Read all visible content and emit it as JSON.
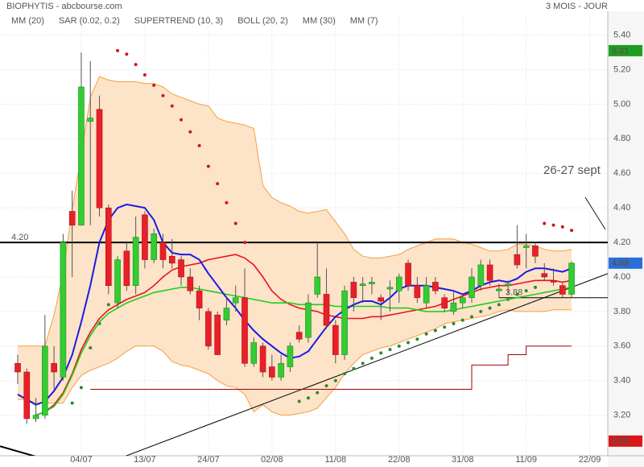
{
  "chart_data": {
    "type": "candlestick",
    "title": "BIOPHYTIS - abcbourse.com",
    "subtitle": "3 MOIS - JOUR",
    "categories": [
      null,
      null,
      null,
      null,
      null,
      null,
      null,
      "04/07",
      null,
      null,
      null,
      null,
      null,
      null,
      "13/07",
      null,
      null,
      null,
      null,
      null,
      null,
      "24/07",
      null,
      null,
      null,
      null,
      null,
      null,
      "02/08",
      null,
      null,
      null,
      null,
      null,
      null,
      "11/08",
      null,
      null,
      null,
      null,
      null,
      null,
      "22/08",
      null,
      null,
      null,
      null,
      null,
      null,
      "31/08",
      null,
      null,
      null,
      null,
      null,
      null,
      "11/09",
      null,
      null,
      null,
      null,
      null,
      null,
      "22/09"
    ],
    "open": [
      3.5,
      3.45,
      3.18,
      3.2,
      3.5,
      3.42,
      4.38,
      4.3,
      4.9,
      4.97,
      4.4,
      3.85,
      4.15,
      3.95,
      4.36,
      4.1,
      4.2,
      4.12,
      4.1,
      4.0,
      3.92,
      3.8,
      3.78,
      3.75,
      3.85,
      3.88,
      3.5,
      3.6,
      3.48,
      3.42,
      3.48,
      3.68,
      3.65,
      3.9,
      3.9,
      3.72,
      3.55,
      3.97,
      3.95,
      3.96,
      3.88,
      3.93,
      3.92,
      4.08,
      3.95,
      3.85,
      3.97,
      3.88,
      3.8,
      3.85,
      3.88,
      3.95,
      4.07,
      3.92,
      3.95,
      4.13,
      4.17,
      4.18,
      4.02,
      3.98,
      3.95,
      3.9,
      null,
      null
    ],
    "close": [
      3.45,
      3.18,
      3.2,
      3.6,
      3.45,
      4.2,
      4.3,
      5.1,
      4.92,
      4.4,
      3.95,
      4.1,
      3.95,
      4.23,
      4.1,
      4.25,
      4.1,
      4.08,
      4.0,
      3.92,
      3.82,
      3.6,
      3.55,
      3.82,
      3.88,
      3.5,
      3.62,
      3.45,
      3.42,
      3.5,
      3.6,
      3.64,
      3.85,
      4.0,
      3.72,
      3.55,
      3.92,
      3.88,
      3.96,
      3.97,
      3.86,
      3.94,
      4.0,
      3.95,
      3.88,
      3.95,
      3.92,
      3.82,
      3.85,
      3.88,
      4.0,
      4.07,
      3.98,
      3.93,
      3.96,
      4.07,
      4.18,
      4.12,
      4.0,
      3.97,
      3.9,
      4.08,
      null,
      null
    ],
    "high": [
      3.55,
      3.47,
      3.3,
      3.78,
      3.6,
      4.25,
      4.5,
      5.3,
      5.25,
      5.05,
      4.42,
      4.12,
      4.2,
      4.35,
      4.38,
      4.28,
      4.25,
      4.22,
      4.12,
      4.05,
      3.95,
      3.82,
      3.8,
      3.88,
      3.95,
      4.05,
      3.65,
      3.62,
      3.55,
      3.55,
      3.62,
      3.72,
      3.9,
      4.2,
      4.05,
      3.75,
      3.95,
      4.0,
      4.0,
      4.0,
      3.9,
      3.98,
      4.02,
      4.1,
      4.0,
      4.0,
      4.0,
      3.9,
      3.92,
      3.9,
      4.05,
      4.1,
      4.1,
      3.96,
      3.98,
      4.3,
      4.25,
      4.2,
      4.08,
      4.05,
      3.97,
      4.09,
      null,
      null
    ],
    "low": [
      3.38,
      3.15,
      3.16,
      3.18,
      3.35,
      3.4,
      4.0,
      4.3,
      4.3,
      4.35,
      3.9,
      3.82,
      3.92,
      3.9,
      4.05,
      4.08,
      4.05,
      4.05,
      3.95,
      3.9,
      3.75,
      3.58,
      3.55,
      3.72,
      3.8,
      3.48,
      3.48,
      3.42,
      3.4,
      3.4,
      3.45,
      3.62,
      3.62,
      3.88,
      3.7,
      3.5,
      3.52,
      3.8,
      3.85,
      3.9,
      3.75,
      3.8,
      3.85,
      3.92,
      3.85,
      3.82,
      3.9,
      3.8,
      3.78,
      3.82,
      3.85,
      3.92,
      3.95,
      3.88,
      3.9,
      4.05,
      4.05,
      4.08,
      3.98,
      3.95,
      3.88,
      3.88,
      null,
      null
    ],
    "up_color": "#33cc33",
    "down_color": "#e8202a",
    "series": [
      {
        "name": "MM (20)",
        "kind": "line",
        "color": "#e8141c",
        "values": [
          null,
          null,
          3.2,
          3.22,
          3.26,
          3.33,
          3.44,
          3.58,
          3.68,
          3.76,
          3.81,
          3.84,
          3.87,
          3.89,
          3.91,
          3.95,
          4.0,
          4.04,
          4.06,
          4.07,
          4.08,
          4.1,
          4.11,
          4.12,
          4.13,
          4.11,
          4.07,
          4.0,
          3.92,
          3.87,
          3.84,
          3.82,
          3.81,
          3.8,
          3.78,
          3.77,
          3.76,
          3.76,
          3.76,
          3.77,
          3.77,
          3.78,
          3.79,
          3.8,
          3.81,
          3.82,
          3.83,
          3.85,
          3.87,
          3.89,
          3.91,
          3.93,
          3.94,
          3.95,
          3.95,
          3.96,
          3.97,
          3.98,
          3.98,
          3.98,
          3.97,
          3.98,
          null,
          null
        ]
      },
      {
        "name": "SAR (0.02, 0.2)",
        "kind": "dots",
        "color": "#cc1a1a",
        "up_color": "#2a8a2a",
        "values": [
          null,
          null,
          null,
          null,
          null,
          null,
          3.27,
          3.36,
          3.59,
          3.73,
          3.84,
          5.31,
          5.29,
          5.23,
          5.17,
          5.11,
          5.05,
          4.99,
          4.91,
          4.84,
          4.76,
          4.64,
          4.54,
          4.43,
          4.31,
          4.2,
          null,
          null,
          null,
          null,
          null,
          3.28,
          3.3,
          3.33,
          3.37,
          3.4,
          3.44,
          3.47,
          3.5,
          3.53,
          3.56,
          3.58,
          3.6,
          3.62,
          3.64,
          3.67,
          3.69,
          3.71,
          3.73,
          3.75,
          3.77,
          3.8,
          3.82,
          3.84,
          3.87,
          3.9,
          3.92,
          3.94,
          4.31,
          4.3,
          4.29,
          4.27,
          null,
          null
        ]
      },
      {
        "name": "SUPERTREND (10, 3)",
        "kind": "step",
        "color": "#1e9e1e",
        "line_color": "#a00000",
        "values": [
          null,
          null,
          null,
          null,
          null,
          null,
          null,
          null,
          3.35,
          3.35,
          3.35,
          3.35,
          3.35,
          3.35,
          3.35,
          3.35,
          3.35,
          3.35,
          3.35,
          3.35,
          3.35,
          3.35,
          3.35,
          3.35,
          3.35,
          3.35,
          3.35,
          3.35,
          3.35,
          3.35,
          3.35,
          3.35,
          3.35,
          3.35,
          3.35,
          3.35,
          3.35,
          3.35,
          3.35,
          3.35,
          3.35,
          3.35,
          3.35,
          3.35,
          3.35,
          3.35,
          3.35,
          3.35,
          3.35,
          3.35,
          3.49,
          3.49,
          3.49,
          3.49,
          3.55,
          3.55,
          3.6,
          3.6,
          3.6,
          3.6,
          3.6,
          3.6,
          null,
          null
        ]
      },
      {
        "name": "BOLL (20, 2)",
        "kind": "band",
        "color": "#f4a040",
        "fill": "#fde3c8",
        "upper": [
          3.6,
          3.6,
          3.6,
          3.6,
          3.78,
          4.02,
          4.39,
          4.71,
          5.04,
          5.16,
          5.14,
          5.13,
          5.13,
          5.13,
          5.12,
          5.12,
          5.1,
          5.06,
          5.04,
          5.02,
          5.0,
          4.99,
          4.92,
          4.9,
          4.89,
          4.88,
          4.86,
          4.53,
          4.46,
          4.43,
          4.41,
          4.38,
          4.37,
          4.38,
          4.39,
          4.32,
          4.25,
          4.16,
          4.12,
          4.11,
          4.11,
          4.12,
          4.13,
          4.16,
          4.18,
          4.2,
          4.22,
          4.22,
          4.22,
          4.2,
          4.19,
          4.17,
          4.15,
          4.15,
          4.16,
          4.19,
          4.19,
          4.18,
          4.16,
          4.15,
          4.15,
          4.16,
          null,
          null
        ],
        "lower": [
          3.29,
          3.29,
          3.27,
          3.27,
          3.27,
          3.27,
          3.36,
          3.43,
          3.46,
          3.48,
          3.5,
          3.53,
          3.57,
          3.6,
          3.6,
          3.6,
          3.57,
          3.51,
          3.49,
          3.48,
          3.46,
          3.44,
          3.4,
          3.37,
          3.36,
          3.32,
          3.22,
          3.26,
          3.22,
          3.2,
          3.2,
          3.21,
          3.22,
          3.24,
          3.3,
          3.36,
          3.44,
          3.5,
          3.55,
          3.57,
          3.59,
          3.6,
          3.62,
          3.64,
          3.66,
          3.68,
          3.7,
          3.73,
          3.74,
          3.75,
          3.76,
          3.77,
          3.78,
          3.8,
          3.81,
          3.8,
          3.8,
          3.8,
          3.8,
          3.81,
          3.81,
          3.81,
          null,
          null
        ]
      },
      {
        "name": "MM (30)",
        "kind": "line",
        "color": "#22cc22",
        "values": [
          null,
          null,
          3.2,
          3.22,
          3.25,
          3.32,
          3.43,
          3.56,
          3.66,
          3.74,
          3.79,
          3.82,
          3.85,
          3.87,
          3.89,
          3.91,
          3.92,
          3.93,
          3.94,
          3.94,
          3.93,
          3.92,
          3.91,
          3.9,
          3.89,
          3.88,
          3.87,
          3.86,
          3.85,
          3.85,
          3.85,
          3.84,
          3.84,
          3.84,
          3.84,
          3.83,
          3.83,
          3.83,
          3.83,
          3.83,
          3.83,
          3.82,
          3.82,
          3.82,
          3.81,
          3.8,
          3.8,
          3.8,
          3.81,
          3.82,
          3.83,
          3.84,
          3.85,
          3.86,
          3.87,
          3.88,
          3.89,
          3.9,
          3.91,
          3.92,
          3.93,
          3.94,
          null,
          null
        ]
      },
      {
        "name": "MM (7)",
        "kind": "line",
        "color": "#1a1ae6",
        "values": [
          3.32,
          3.29,
          3.26,
          3.28,
          3.34,
          3.42,
          3.55,
          3.74,
          3.95,
          4.2,
          4.33,
          4.4,
          4.42,
          4.41,
          4.4,
          4.33,
          4.2,
          4.14,
          4.13,
          4.13,
          4.1,
          4.02,
          3.95,
          3.88,
          3.82,
          3.75,
          3.69,
          3.64,
          3.6,
          3.56,
          3.53,
          3.54,
          3.57,
          3.64,
          3.71,
          3.77,
          3.81,
          3.84,
          3.86,
          3.86,
          3.84,
          3.88,
          3.93,
          3.95,
          3.95,
          3.95,
          3.94,
          3.93,
          3.92,
          3.9,
          3.92,
          3.95,
          3.97,
          3.98,
          3.97,
          3.99,
          4.03,
          4.05,
          4.05,
          4.04,
          4.03,
          4.05,
          null,
          null
        ]
      }
    ],
    "ylim": [
      2.97,
      5.51
    ],
    "yticks": [
      {
        "value": 3.2,
        "label": "3.20"
      },
      {
        "value": 3.4,
        "label": "3.40"
      },
      {
        "value": 3.6,
        "label": "3.60"
      },
      {
        "value": 3.8,
        "label": "3.80"
      },
      {
        "value": 4.0,
        "label": "4.00"
      },
      {
        "value": 4.2,
        "label": "4.20"
      },
      {
        "value": 4.4,
        "label": "4.40"
      },
      {
        "value": 4.6,
        "label": "4.60"
      },
      {
        "value": 4.8,
        "label": "4.80"
      },
      {
        "value": 5.0,
        "label": "5.00"
      },
      {
        "value": 5.2,
        "label": "5.20"
      },
      {
        "value": 5.4,
        "label": "5.40"
      }
    ],
    "grid": true,
    "levels": [
      {
        "value": 4.2,
        "label": "4.20",
        "from": -2
      },
      {
        "value": 3.88,
        "label": "3.88",
        "from": 53
      }
    ],
    "trendlines": [
      {
        "from": [
          8.69,
          2.9
        ],
        "to": [
          65.0,
          4.02
        ]
      },
      {
        "from": [
          -1.95,
          3.02
        ],
        "to": [
          4.7,
          2.92
        ]
      }
    ],
    "price_tags": [
      {
        "value": 5.31,
        "color": "#1e9e1e"
      },
      {
        "value": 4.08,
        "color": "#2a6fd6"
      },
      {
        "value": 3.05,
        "color": "#d81818"
      }
    ],
    "annotation": "26-27 sept"
  }
}
